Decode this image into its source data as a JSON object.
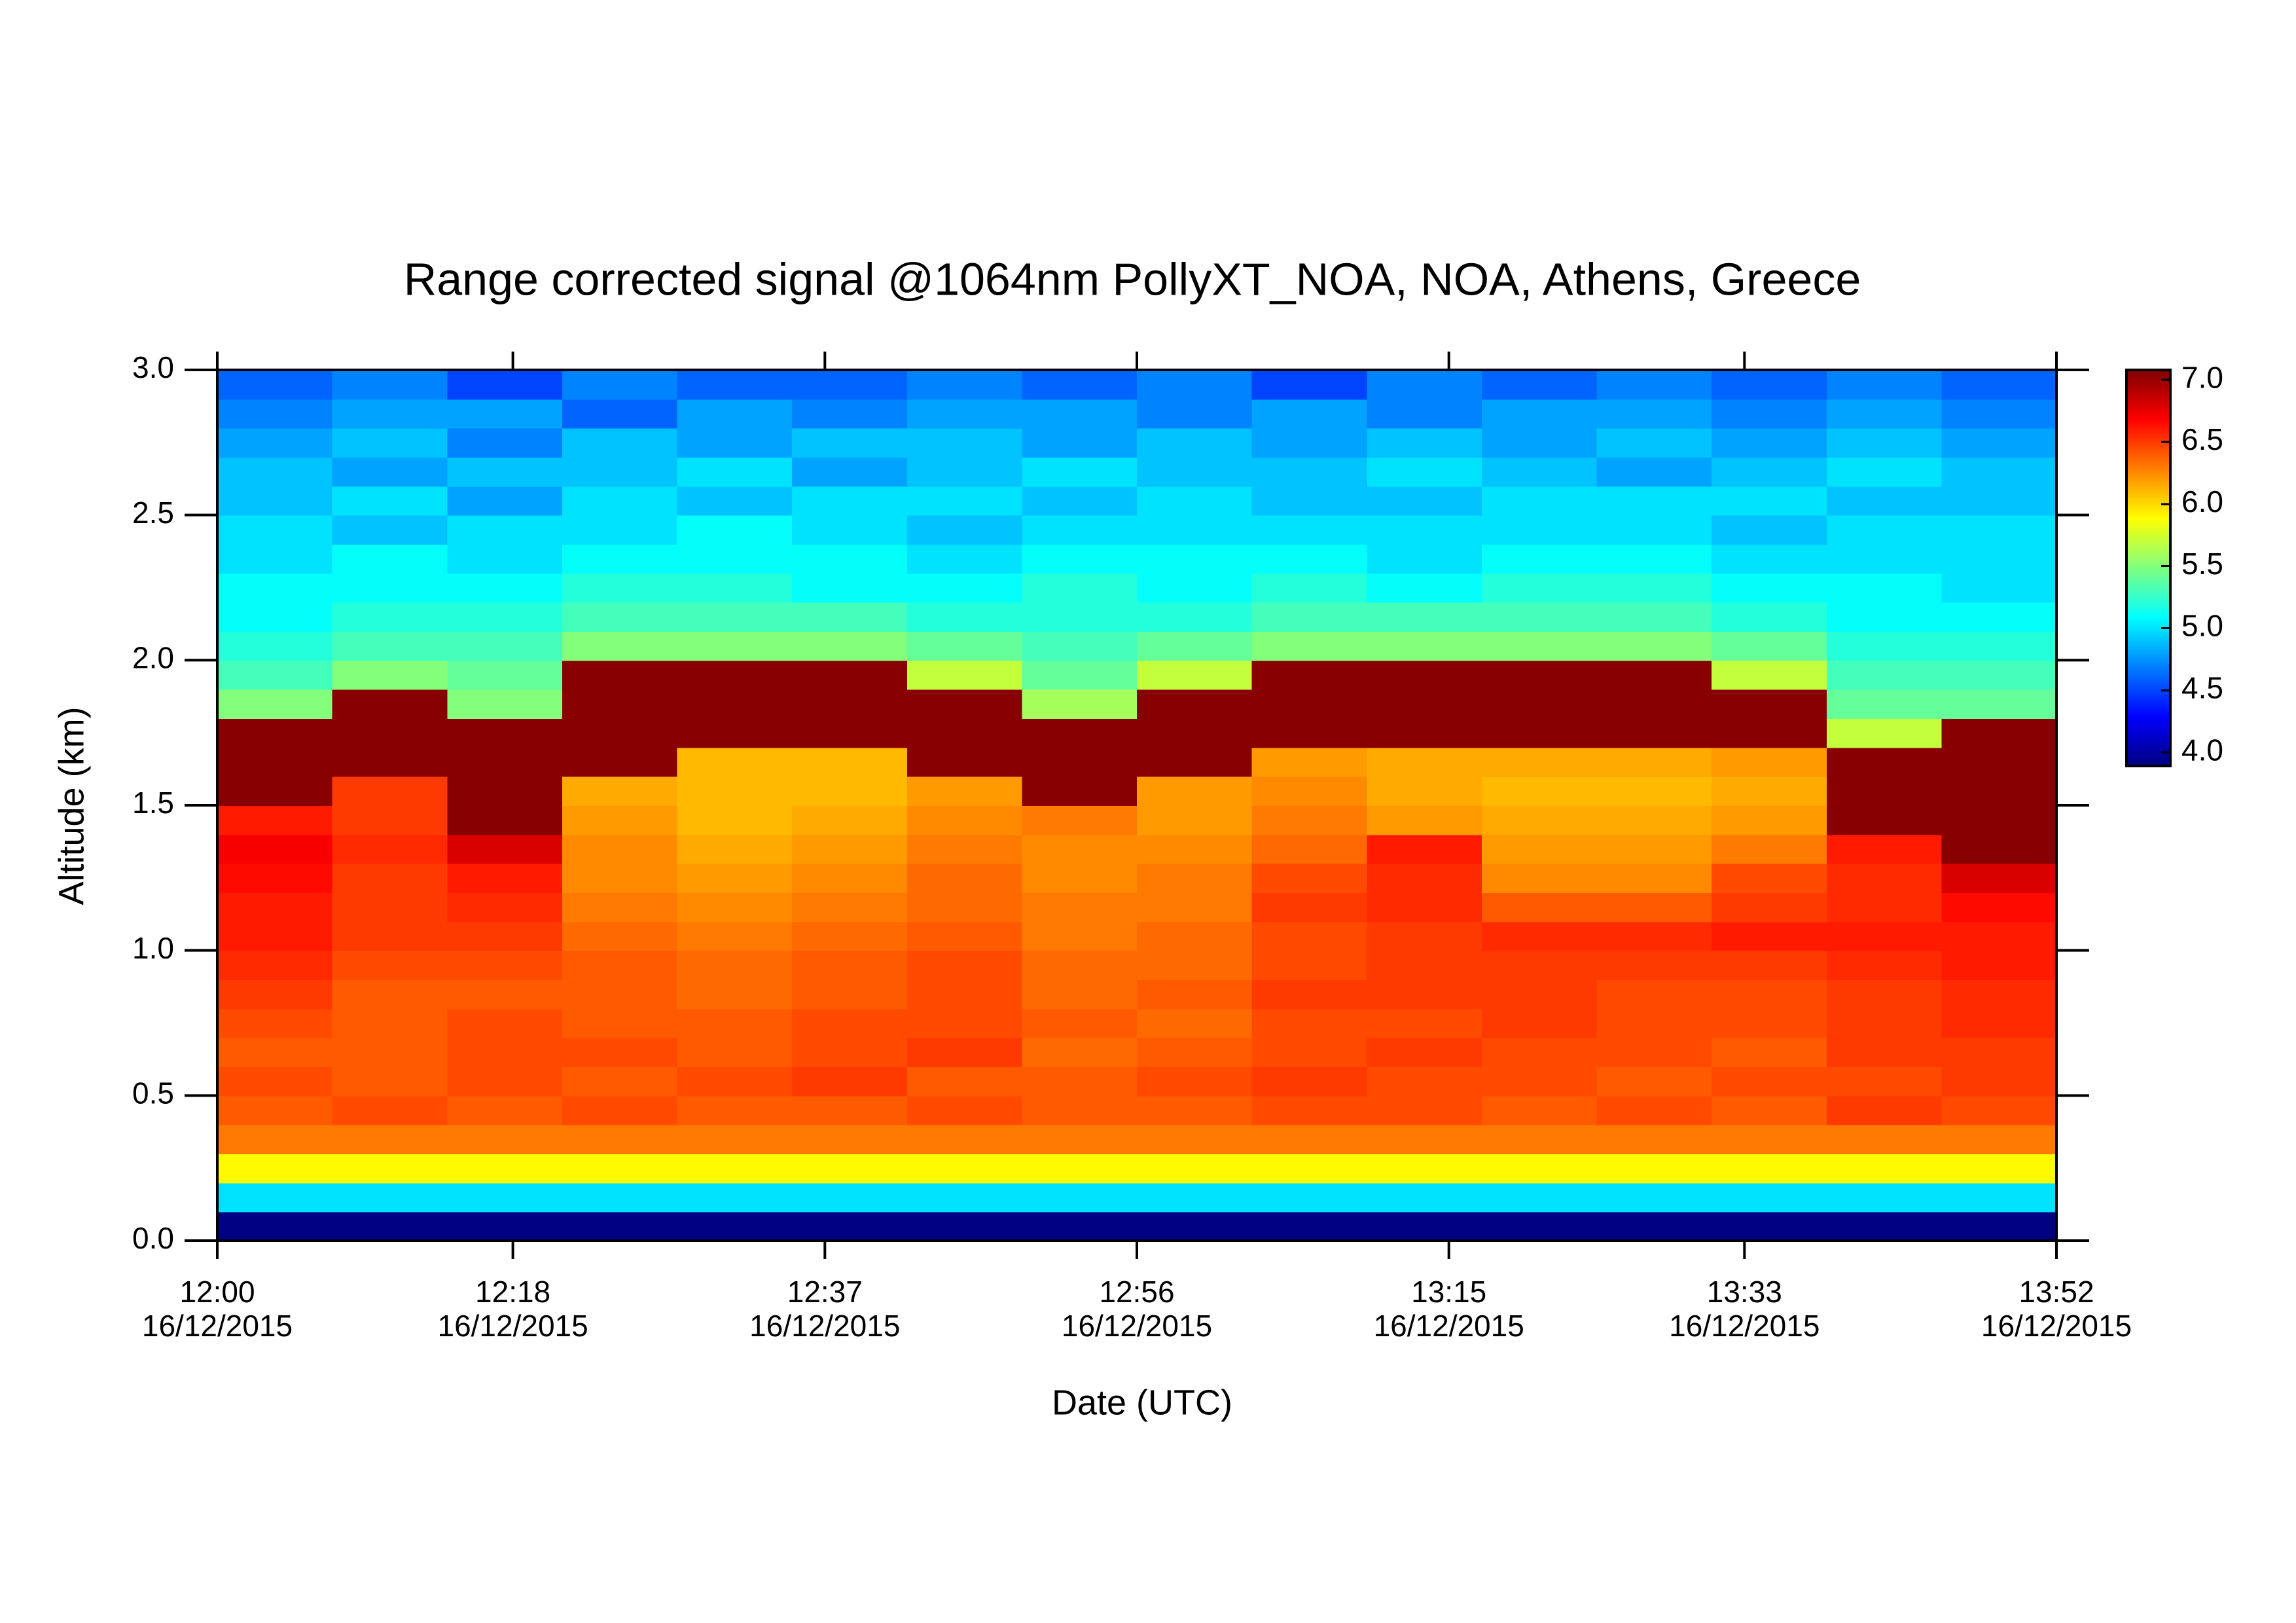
{
  "chart_data": {
    "type": "heatmap",
    "title": "Range corrected signal @1064nm  PollyXT_NOA, NOA, Athens, Greece",
    "x_label": "Date (UTC)",
    "y_label": "Altitude (km)",
    "colormap": "jet",
    "x_bins": [
      "12:00",
      "12:07",
      "12:14",
      "12:21",
      "12:28",
      "12:35",
      "12:42",
      "12:49",
      "12:56",
      "13:03",
      "13:10",
      "13:17",
      "13:24",
      "13:31",
      "13:38",
      "13:45",
      "13:52"
    ],
    "y_bins": [
      0,
      0.1,
      0.2,
      0.3,
      0.4,
      0.5,
      0.6,
      0.7,
      0.8,
      0.9,
      1.0,
      1.1,
      1.2,
      1.3,
      1.4,
      1.5,
      1.6,
      1.7,
      1.8,
      1.9,
      2.0,
      2.1,
      2.2,
      2.3,
      2.4,
      2.5,
      2.6,
      2.7,
      2.8,
      2.9,
      3.0
    ],
    "z": [
      [
        3.9,
        3.9,
        3.9,
        3.9,
        3.9,
        3.9,
        3.9,
        3.9,
        3.9,
        3.9,
        3.9,
        3.9,
        3.9,
        3.9,
        3.9,
        3.9
      ],
      [
        5.0,
        5.0,
        5.0,
        5.0,
        5.0,
        5.0,
        5.0,
        5.0,
        5.0,
        5.0,
        5.0,
        5.0,
        5.0,
        5.0,
        5.0,
        5.0
      ],
      [
        5.9,
        5.9,
        5.9,
        5.9,
        5.9,
        5.9,
        5.9,
        5.9,
        5.9,
        5.9,
        5.9,
        5.9,
        5.9,
        5.9,
        5.9,
        5.9
      ],
      [
        6.3,
        6.3,
        6.3,
        6.3,
        6.3,
        6.3,
        6.3,
        6.3,
        6.3,
        6.3,
        6.3,
        6.3,
        6.3,
        6.3,
        6.3,
        6.3
      ],
      [
        6.4,
        6.45,
        6.4,
        6.45,
        6.4,
        6.4,
        6.45,
        6.4,
        6.4,
        6.45,
        6.45,
        6.4,
        6.45,
        6.4,
        6.5,
        6.45
      ],
      [
        6.45,
        6.4,
        6.45,
        6.4,
        6.45,
        6.5,
        6.4,
        6.4,
        6.45,
        6.5,
        6.45,
        6.45,
        6.4,
        6.45,
        6.45,
        6.5
      ],
      [
        6.4,
        6.4,
        6.45,
        6.45,
        6.4,
        6.45,
        6.5,
        6.35,
        6.4,
        6.45,
        6.5,
        6.45,
        6.45,
        6.4,
        6.5,
        6.5
      ],
      [
        6.45,
        6.4,
        6.45,
        6.4,
        6.4,
        6.45,
        6.45,
        6.4,
        6.35,
        6.45,
        6.45,
        6.5,
        6.45,
        6.45,
        6.5,
        6.55
      ],
      [
        6.5,
        6.4,
        6.4,
        6.4,
        6.35,
        6.4,
        6.45,
        6.35,
        6.4,
        6.5,
        6.5,
        6.5,
        6.45,
        6.45,
        6.5,
        6.55
      ],
      [
        6.55,
        6.45,
        6.45,
        6.4,
        6.35,
        6.4,
        6.45,
        6.35,
        6.35,
        6.45,
        6.5,
        6.5,
        6.5,
        6.5,
        6.55,
        6.6
      ],
      [
        6.6,
        6.5,
        6.5,
        6.35,
        6.3,
        6.35,
        6.4,
        6.3,
        6.35,
        6.45,
        6.5,
        6.55,
        6.55,
        6.6,
        6.6,
        6.6
      ],
      [
        6.6,
        6.5,
        6.55,
        6.3,
        6.25,
        6.3,
        6.35,
        6.3,
        6.3,
        6.5,
        6.55,
        6.4,
        6.4,
        6.5,
        6.55,
        6.65
      ],
      [
        6.65,
        6.5,
        6.6,
        6.25,
        6.2,
        6.25,
        6.35,
        6.25,
        6.3,
        6.45,
        6.55,
        6.25,
        6.25,
        6.45,
        6.55,
        6.8
      ],
      [
        6.7,
        6.55,
        6.8,
        6.25,
        6.15,
        6.2,
        6.3,
        6.25,
        6.25,
        6.35,
        6.6,
        6.2,
        6.2,
        6.3,
        6.6,
        7.05
      ],
      [
        6.6,
        6.5,
        7.05,
        6.2,
        6.1,
        6.15,
        6.25,
        6.3,
        6.2,
        6.3,
        6.2,
        6.15,
        6.15,
        6.2,
        7.05,
        7.05
      ],
      [
        7.05,
        6.5,
        7.05,
        6.15,
        6.1,
        6.1,
        6.2,
        7.05,
        6.2,
        6.25,
        6.15,
        6.1,
        6.1,
        6.15,
        7.05,
        7.05
      ],
      [
        7.05,
        7.05,
        7.05,
        7.05,
        6.1,
        6.1,
        7.05,
        7.05,
        7.05,
        6.2,
        6.15,
        6.15,
        6.15,
        6.2,
        7.05,
        7.05
      ],
      [
        7.05,
        7.05,
        7.05,
        7.05,
        7.05,
        7.05,
        7.05,
        7.05,
        7.05,
        7.05,
        7.05,
        7.05,
        7.05,
        7.05,
        5.7,
        7.05
      ],
      [
        5.5,
        7.05,
        5.5,
        7.05,
        7.05,
        7.05,
        7.05,
        5.6,
        7.05,
        7.05,
        7.05,
        7.05,
        7.05,
        7.05,
        5.4,
        5.4
      ],
      [
        5.3,
        5.5,
        5.4,
        7.05,
        7.05,
        7.05,
        5.7,
        5.4,
        5.7,
        7.05,
        7.05,
        7.05,
        7.05,
        5.7,
        5.3,
        5.3
      ],
      [
        5.2,
        5.3,
        5.3,
        5.5,
        5.5,
        5.5,
        5.4,
        5.3,
        5.4,
        5.5,
        5.5,
        5.5,
        5.5,
        5.4,
        5.2,
        5.2
      ],
      [
        5.1,
        5.2,
        5.2,
        5.3,
        5.3,
        5.3,
        5.2,
        5.2,
        5.2,
        5.3,
        5.3,
        5.3,
        5.3,
        5.2,
        5.1,
        5.1
      ],
      [
        5.1,
        5.1,
        5.1,
        5.2,
        5.2,
        5.1,
        5.1,
        5.2,
        5.1,
        5.2,
        5.1,
        5.2,
        5.2,
        5.1,
        5.1,
        5.0
      ],
      [
        5.0,
        5.1,
        5.0,
        5.1,
        5.1,
        5.1,
        5.0,
        5.1,
        5.1,
        5.1,
        5.0,
        5.1,
        5.1,
        5.0,
        5.0,
        5.0
      ],
      [
        5.0,
        4.9,
        5.0,
        5.0,
        5.1,
        5.0,
        4.9,
        5.0,
        5.0,
        5.0,
        5.0,
        5.0,
        5.0,
        4.9,
        5.0,
        5.0
      ],
      [
        4.9,
        5.0,
        4.8,
        5.0,
        4.9,
        5.0,
        5.0,
        4.9,
        5.0,
        4.9,
        4.9,
        5.0,
        5.0,
        5.0,
        4.9,
        4.9
      ],
      [
        4.9,
        4.8,
        4.9,
        4.9,
        5.0,
        4.8,
        4.9,
        5.0,
        4.9,
        4.9,
        5.0,
        4.9,
        4.8,
        4.9,
        5.0,
        4.9
      ],
      [
        4.8,
        4.9,
        4.7,
        4.9,
        4.8,
        4.9,
        4.9,
        4.8,
        4.9,
        4.8,
        4.9,
        4.8,
        4.9,
        4.8,
        4.9,
        4.8
      ],
      [
        4.7,
        4.8,
        4.8,
        4.6,
        4.8,
        4.7,
        4.8,
        4.8,
        4.7,
        4.8,
        4.7,
        4.8,
        4.8,
        4.7,
        4.8,
        4.7
      ],
      [
        4.6,
        4.7,
        4.5,
        4.7,
        4.6,
        4.6,
        4.7,
        4.6,
        4.7,
        4.5,
        4.7,
        4.6,
        4.7,
        4.6,
        4.7,
        4.6
      ]
    ],
    "xlim": [
      "12:00",
      "13:52"
    ],
    "xticks": [
      {
        "time": "12:00",
        "date": "16/12/2015"
      },
      {
        "time": "12:18",
        "date": "16/12/2015"
      },
      {
        "time": "12:37",
        "date": "16/12/2015"
      },
      {
        "time": "12:56",
        "date": "16/12/2015"
      },
      {
        "time": "13:15",
        "date": "16/12/2015"
      },
      {
        "time": "13:33",
        "date": "16/12/2015"
      },
      {
        "time": "13:52",
        "date": "16/12/2015"
      }
    ],
    "ylim": [
      0,
      3.0
    ],
    "yticks": [
      {
        "value": 0,
        "label": "0.0"
      },
      {
        "value": 0.5,
        "label": "0.5"
      },
      {
        "value": 1,
        "label": "1.0"
      },
      {
        "value": 1.5,
        "label": "1.5"
      },
      {
        "value": 2,
        "label": "2.0"
      },
      {
        "value": 2.5,
        "label": "2.5"
      },
      {
        "value": 3,
        "label": "3.0"
      }
    ],
    "zlim": [
      3.89,
      7.08
    ],
    "zticks": [
      {
        "value": 4,
        "label": "4.0"
      },
      {
        "value": 4.5,
        "label": "4.5"
      },
      {
        "value": 5,
        "label": "5.0"
      },
      {
        "value": 5.5,
        "label": "5.5"
      },
      {
        "value": 6,
        "label": "6.0"
      },
      {
        "value": 6.5,
        "label": "6.5"
      },
      {
        "value": 7,
        "label": "7.0"
      }
    ]
  }
}
